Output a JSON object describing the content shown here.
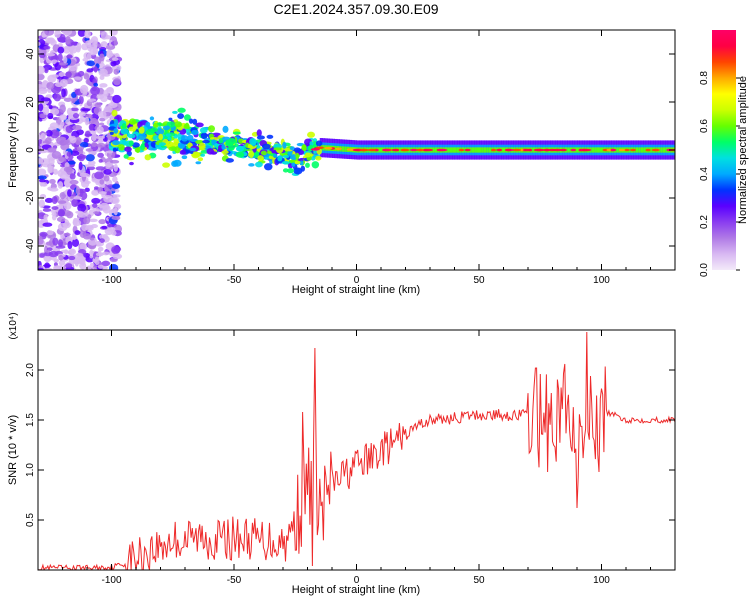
{
  "page_title": "C2E1.2024.357.09.30.E09",
  "colors": {
    "line": "#ee2a2a",
    "axis": "#000000",
    "colormap": [
      "#f3eaf9",
      "#d8b8f2",
      "#b07ae6",
      "#8a3df0",
      "#5a00ff",
      "#0033ff",
      "#00aaff",
      "#00e0e0",
      "#00ff66",
      "#66ff00",
      "#ccff00",
      "#ffff00",
      "#ffaa00",
      "#ff4400",
      "#ff0044",
      "#ff0066"
    ]
  },
  "chart_data": [
    {
      "type": "heatmap",
      "title": "C2E1.2024.357.09.30.E09",
      "xlabel": "Height of straight line (km)",
      "ylabel": "Frequency (Hz)",
      "xlim": [
        -130,
        130
      ],
      "ylim": [
        -50,
        50
      ],
      "xticks": [
        -100,
        -50,
        0,
        50,
        100
      ],
      "yticks": [
        -40,
        -20,
        0,
        20,
        40
      ],
      "colorbar": {
        "label": "Normalized spectral amplitude",
        "range": [
          0,
          1
        ],
        "ticks": [
          "0.0",
          "0.2",
          "0.4",
          "0.6",
          "0.8"
        ]
      },
      "features": {
        "noise_region_x": [
          -130,
          -97
        ],
        "signal_band": [
          {
            "x": -100,
            "f": 6
          },
          {
            "x": -80,
            "f": 6
          },
          {
            "x": -60,
            "f": 3
          },
          {
            "x": -40,
            "f": 0
          },
          {
            "x": -25,
            "f": -3
          },
          {
            "x": -15,
            "f": 1
          },
          {
            "x": 0,
            "f": 0
          },
          {
            "x": 50,
            "f": 0
          },
          {
            "x": 100,
            "f": 0
          },
          {
            "x": 130,
            "f": 0
          }
        ]
      }
    },
    {
      "type": "line",
      "xlabel": "Height of straight line (km)",
      "ylabel": "SNR (10 * v/v)",
      "yscale_label": "(x10⁴)",
      "xlim": [
        -130,
        130
      ],
      "ylim": [
        0,
        2.4
      ],
      "xticks": [
        -100,
        -50,
        0,
        50,
        100
      ],
      "yticks": [
        "0.5",
        "1.0",
        "1.5",
        "2.0"
      ],
      "series": [
        {
          "x": [
            -130,
            -110,
            -100,
            -95,
            -90,
            -85,
            -80,
            -75,
            -70,
            -65,
            -60,
            -55,
            -50,
            -45,
            -40,
            -35,
            -30,
            -27,
            -25,
            -22,
            -20,
            -18,
            -16,
            -14,
            -12,
            -10,
            -8,
            -5,
            0,
            5,
            10,
            15,
            20,
            25,
            30,
            40,
            50,
            60,
            70,
            74,
            76,
            78,
            80,
            84,
            88,
            90,
            92,
            94,
            96,
            98,
            100,
            105,
            110,
            120,
            130
          ],
          "y": [
            0.02,
            0.02,
            0.03,
            0.06,
            0.12,
            0.18,
            0.24,
            0.3,
            0.3,
            0.32,
            0.32,
            0.3,
            0.32,
            0.32,
            0.3,
            0.3,
            0.28,
            0.34,
            0.55,
            0.65,
            0.8,
            1.0,
            0.75,
            0.55,
            0.78,
            0.85,
            0.9,
            0.95,
            1.05,
            1.1,
            1.2,
            1.25,
            1.35,
            1.45,
            1.5,
            1.52,
            1.55,
            1.55,
            1.55,
            1.6,
            1.1,
            1.7,
            1.45,
            1.6,
            1.4,
            1.2,
            1.3,
            1.7,
            1.6,
            1.3,
            1.6,
            1.55,
            1.5,
            1.5,
            1.5
          ],
          "spikes": [
            {
              "x": -22,
              "y": 1.58
            },
            {
              "x": -17,
              "y": 2.22
            },
            {
              "x": -18,
              "y": 0.04
            },
            {
              "x": 75,
              "y": 1.96
            },
            {
              "x": 78,
              "y": 0.98
            },
            {
              "x": 85,
              "y": 2.06
            },
            {
              "x": 90,
              "y": 0.62
            },
            {
              "x": 94,
              "y": 2.38
            },
            {
              "x": 99,
              "y": 0.98
            }
          ]
        }
      ]
    }
  ]
}
